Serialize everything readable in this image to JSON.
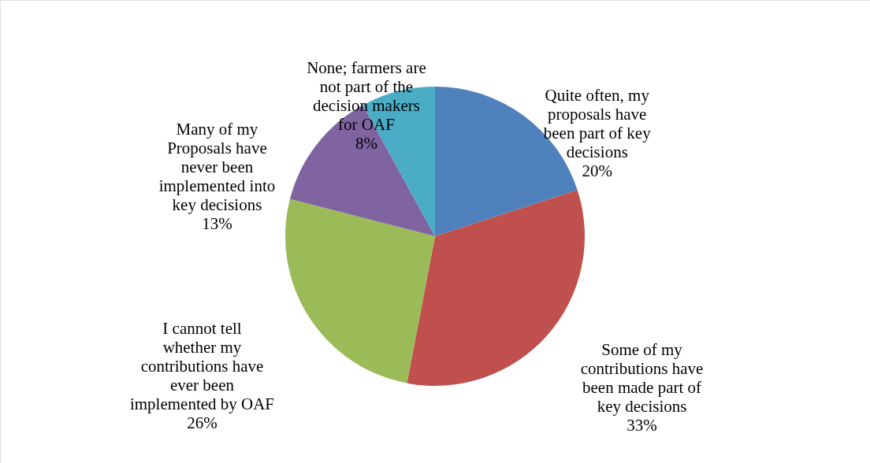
{
  "chart_data": {
    "type": "pie",
    "categories": [
      "Quite often, my proposals have been part of key decisions",
      "Some of my contributions have been made part of key decisions",
      "I cannot tell whether my contributions have ever been implemented by OAF",
      "Many of my Proposals have never been implemented into key decisions",
      "None; farmers are not part of the decision makers for OAF"
    ],
    "values": [
      20,
      33,
      26,
      13,
      8
    ],
    "value_labels": [
      "20%",
      "33%",
      "26%",
      "13%",
      "8%"
    ],
    "colors": [
      "#4f81bd",
      "#c0504d",
      "#9bbb59",
      "#8064a2",
      "#4bacc6"
    ]
  }
}
